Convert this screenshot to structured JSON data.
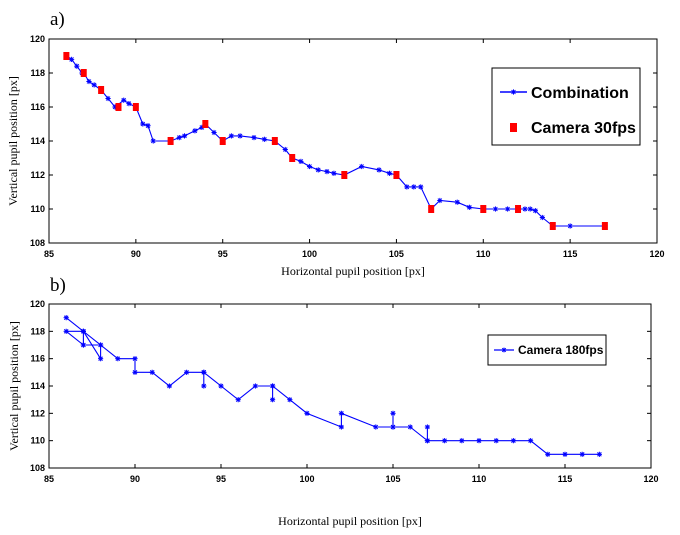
{
  "figure": {
    "panel_a_label": "a)",
    "panel_b_label": "b)"
  },
  "chart_data": [
    {
      "type": "line",
      "panel": "a)",
      "xlabel": "Horizontal pupil position [px]",
      "ylabel": "Vertical pupil position [px]",
      "xlim": [
        85,
        120
      ],
      "ylim": [
        108,
        120
      ],
      "xticks": [
        85,
        90,
        95,
        100,
        105,
        110,
        115,
        120
      ],
      "yticks": [
        108,
        110,
        112,
        114,
        116,
        118,
        120
      ],
      "grid": false,
      "legend_position": "top-right",
      "series": [
        {
          "name": "Combination",
          "color": "#0000ff",
          "marker": "star",
          "x": [
            86,
            86.3,
            86.6,
            86.9,
            87,
            87.3,
            87.6,
            88,
            88.4,
            88.8,
            89.3,
            89.6,
            90,
            90.4,
            90.7,
            91,
            92,
            92.5,
            92.8,
            93.4,
            93.8,
            94,
            94.5,
            95,
            95.5,
            96,
            96.8,
            97.4,
            98,
            98.6,
            99,
            99.5,
            100,
            100.5,
            101,
            101.4,
            102,
            103,
            104,
            104.6,
            105,
            105.6,
            106,
            106.4,
            107,
            107.5,
            108.5,
            109.2,
            110,
            110.7,
            111.4,
            112,
            112.4,
            112.7,
            113,
            113.4,
            114,
            115,
            117
          ],
          "y": [
            119,
            118.8,
            118.4,
            118,
            118,
            117.5,
            117.3,
            117,
            116.5,
            116,
            116.4,
            116.2,
            116,
            115,
            114.9,
            114,
            114,
            114.2,
            114.3,
            114.6,
            114.8,
            115,
            114.5,
            114,
            114.3,
            114.3,
            114.2,
            114.1,
            114,
            113.5,
            113,
            112.8,
            112.5,
            112.3,
            112.2,
            112.1,
            112,
            112.5,
            112.3,
            112.1,
            112,
            111.3,
            111.3,
            111.3,
            110,
            110.5,
            110.4,
            110.1,
            110,
            110,
            110,
            110,
            110,
            110,
            109.9,
            109.5,
            109,
            109,
            109
          ]
        },
        {
          "name": "Camera 30fps",
          "color": "#ff0000",
          "marker": "square",
          "x": [
            86,
            87,
            88,
            89,
            90,
            92,
            94,
            95,
            98,
            99,
            102,
            105,
            107,
            110,
            112,
            114,
            117
          ],
          "y": [
            119,
            118,
            117,
            116,
            116,
            114,
            115,
            114,
            114,
            113,
            112,
            112,
            110,
            110,
            110,
            109,
            109
          ]
        }
      ]
    },
    {
      "type": "line",
      "panel": "b)",
      "xlabel": "Horizontal pupil position [px]",
      "ylabel": "Vertical pupil position [px]",
      "xlim": [
        85,
        120
      ],
      "ylim": [
        108,
        120
      ],
      "xticks": [
        85,
        90,
        95,
        100,
        105,
        110,
        115,
        120
      ],
      "yticks": [
        108,
        110,
        112,
        114,
        116,
        118,
        120
      ],
      "grid": false,
      "legend_position": "top-right",
      "series": [
        {
          "name": "Camera 180fps",
          "color": "#0000ff",
          "marker": "star",
          "x": [
            86,
            87,
            87,
            87,
            88,
            87,
            86,
            87,
            88,
            88,
            89,
            90,
            90,
            91,
            92,
            93,
            94,
            94,
            94,
            95,
            96,
            97,
            98,
            98,
            98,
            99,
            100,
            102,
            102,
            104,
            105,
            105,
            105,
            106,
            107,
            107,
            107,
            108,
            109,
            110,
            111,
            112,
            113,
            114,
            115,
            116,
            117
          ],
          "y": [
            119,
            118,
            117,
            118,
            117,
            117,
            118,
            118,
            116,
            117,
            116,
            116,
            115,
            115,
            114,
            115,
            115,
            114,
            115,
            114,
            113,
            114,
            114,
            113,
            114,
            113,
            112,
            111,
            112,
            111,
            111,
            112,
            111,
            111,
            110,
            111,
            110,
            110,
            110,
            110,
            110,
            110,
            110,
            109,
            109,
            109,
            109
          ]
        }
      ]
    }
  ]
}
